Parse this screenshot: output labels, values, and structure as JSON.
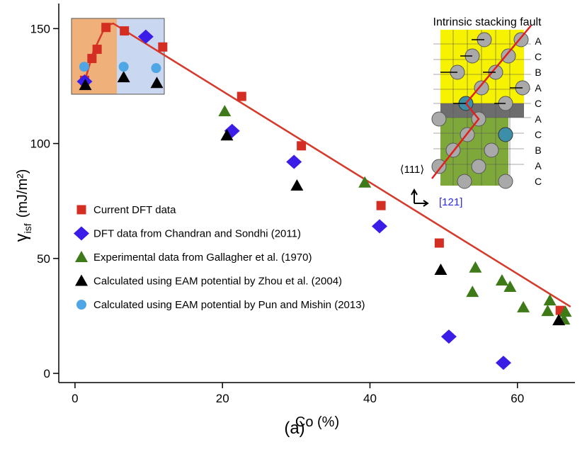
{
  "chart_data": {
    "type": "scatter",
    "xlabel": "Co (%)",
    "ylabel": {
      "symbol": "γ",
      "subscript": "isf",
      "unit": "(mJ/m²)"
    },
    "caption": "(a)",
    "xlim": [
      -2.2,
      67.8
    ],
    "ylim": [
      -4,
      160.9
    ],
    "xticks": [
      0,
      20,
      40,
      60
    ],
    "yticks": [
      0,
      50,
      100,
      150
    ],
    "legend": "left",
    "series": [
      {
        "name": "Current DFT data",
        "marker": "square",
        "color": "#d42e23",
        "x": [
          1.3,
          2.3,
          3.0,
          4.2,
          6.7,
          11.9,
          22.6,
          30.7,
          41.5,
          49.4,
          65.8
        ],
        "values": [
          127.5,
          137,
          141,
          150.5,
          149,
          142,
          120.5,
          99,
          73,
          56.7,
          27.4
        ]
      },
      {
        "name": "DFT data from Chandran and Sondhi (2011)",
        "marker": "diamond",
        "color": "#3a1ee8",
        "x": [
          1.3,
          9.6,
          21.3,
          29.7,
          41.3,
          50.7,
          58.1
        ],
        "values": [
          127,
          146.5,
          105.5,
          92,
          64,
          16,
          4.6
        ]
      },
      {
        "name": "Experimental data from Gallagher et al. (1970)",
        "marker": "triangle",
        "color": "#3e7a17",
        "x": [
          20.3,
          39.3,
          54.3,
          53.9,
          57.9,
          59.0,
          60.8,
          64.4,
          64.1,
          66.5,
          66.3
        ],
        "values": [
          114,
          83,
          46,
          35.4,
          40.4,
          37.6,
          28.7,
          31.7,
          27.1,
          26.8,
          23.4
        ]
      },
      {
        "name": "Calculated using EAM potential by Zhou et al. (2004)",
        "marker": "triangle",
        "color": "#000000",
        "x": [
          1.4,
          6.6,
          11.1,
          20.6,
          30.1,
          49.6,
          65.6
        ],
        "values": [
          125.4,
          128.8,
          126.3,
          103.5,
          81.7,
          45,
          23.1
        ]
      },
      {
        "name": "Calculated using EAM potential by Pun and Mishin (2013)",
        "marker": "circle",
        "color": "#4ea6e4",
        "x": [
          1.25,
          6.6,
          11.0
        ],
        "values": [
          133.4,
          133.4,
          132.8
        ]
      },
      {
        "marker": "line",
        "color": "#d63a2a",
        "x": [
          1.3,
          2.5,
          4.2,
          5.2,
          67.2
        ],
        "values": [
          127,
          140,
          151.5,
          152.2,
          29
        ]
      }
    ],
    "inset_title": "Intrinsic stacking fault",
    "stacking": [
      "A",
      "C",
      "B",
      "A",
      "C",
      "A",
      "C",
      "B",
      "A",
      "C"
    ],
    "direction_up": "⟨111⟩",
    "direction_right": "[121]"
  }
}
